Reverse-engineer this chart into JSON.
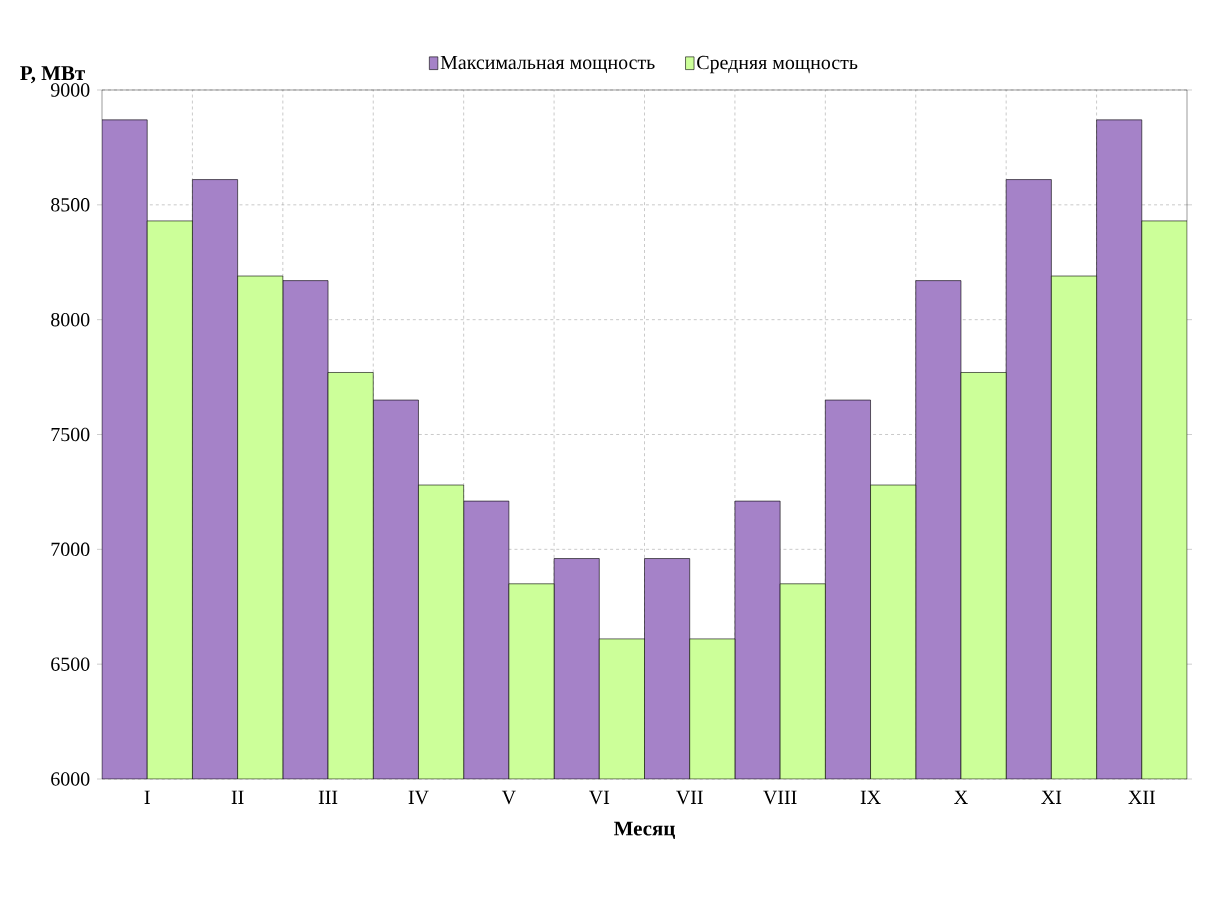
{
  "chart_data": {
    "type": "bar",
    "ylabel": "P, МВт",
    "xlabel": "Месяц",
    "categories": [
      "I",
      "II",
      "III",
      "IV",
      "V",
      "VI",
      "VII",
      "VIII",
      "IX",
      "X",
      "XI",
      "XII"
    ],
    "series": [
      {
        "name": "Максимальная мощность",
        "color": "#a582c8",
        "values": [
          8870,
          8610,
          8170,
          7650,
          7210,
          6960,
          6960,
          7210,
          7650,
          8170,
          8610,
          8870
        ]
      },
      {
        "name": "Средняя мощность",
        "color": "#ccff99",
        "values": [
          8430,
          8190,
          7770,
          7280,
          6850,
          6610,
          6610,
          6850,
          7280,
          7770,
          8190,
          8430
        ]
      }
    ],
    "ylim": [
      6000,
      9000
    ],
    "yticks": [
      6000,
      6500,
      7000,
      7500,
      8000,
      8500,
      9000
    ],
    "grid": true,
    "legend": "top"
  }
}
